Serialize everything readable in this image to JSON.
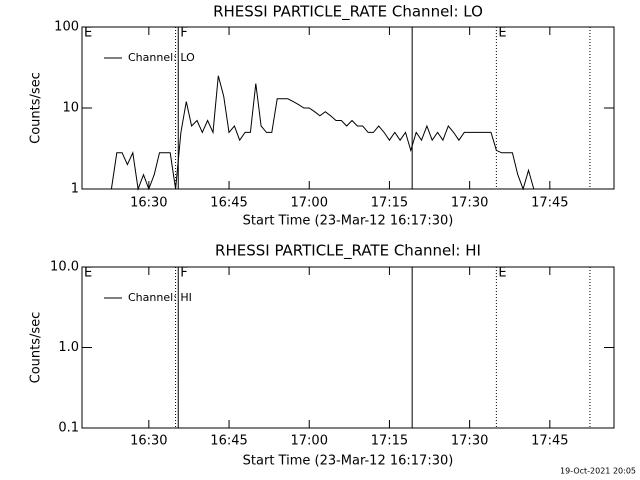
{
  "chart_data": [
    {
      "type": "line",
      "title": "RHESSI PARTICLE_RATE Channel: LO",
      "xlabel": "Start Time (23-Mar-12 16:17:30)",
      "ylabel": "Counts/sec",
      "log_y": true,
      "ylim": [
        1,
        100
      ],
      "yticks": [
        1,
        10,
        100
      ],
      "xlim": [
        "16:17:30",
        "17:57"
      ],
      "xticks": [
        "16:30",
        "16:45",
        "17:00",
        "17:15",
        "17:30",
        "17:45"
      ],
      "x": [
        "16:23",
        "16:24",
        "16:25",
        "16:26",
        "16:27",
        "16:28",
        "16:29",
        "16:30",
        "16:31",
        "16:32",
        "16:33",
        "16:34",
        "16:35",
        "16:36",
        "16:37",
        "16:38",
        "16:39",
        "16:40",
        "16:41",
        "16:42",
        "16:43",
        "16:44",
        "16:45",
        "16:46",
        "16:47",
        "16:48",
        "16:49",
        "16:50",
        "16:51",
        "16:52",
        "16:53",
        "16:54",
        "16:55",
        "16:56",
        "16:57",
        "16:58",
        "16:59",
        "17:00",
        "17:01",
        "17:02",
        "17:03",
        "17:04",
        "17:05",
        "17:06",
        "17:07",
        "17:08",
        "17:09",
        "17:10",
        "17:11",
        "17:12",
        "17:13",
        "17:14",
        "17:15",
        "17:16",
        "17:17",
        "17:18",
        "17:19",
        "17:20",
        "17:21",
        "17:22",
        "17:23",
        "17:24",
        "17:25",
        "17:26",
        "17:27",
        "17:28",
        "17:29",
        "17:30",
        "17:31",
        "17:32",
        "17:33",
        "17:34",
        "17:35",
        "17:36",
        "17:37",
        "17:38",
        "17:39",
        "17:40",
        "17:41",
        "17:42"
      ],
      "series": [
        {
          "name": "Channel: LO",
          "color": "#000000",
          "values": [
            1,
            2.8,
            2.8,
            2,
            2.8,
            1,
            1.5,
            1,
            1.5,
            2.8,
            2.8,
            2.8,
            1,
            5,
            12,
            6,
            7,
            5,
            7,
            5,
            25,
            14,
            5,
            6,
            4,
            5,
            5,
            20,
            6,
            5,
            5,
            13,
            13,
            13,
            12,
            11,
            10,
            10,
            9,
            8,
            9,
            8,
            7,
            7,
            6,
            7,
            6,
            6,
            5,
            5,
            6,
            5,
            4,
            5,
            4,
            5,
            3,
            5,
            4,
            6,
            4,
            5,
            4,
            6,
            5,
            4,
            5,
            5,
            5,
            5,
            5,
            5,
            3,
            2.8,
            2.8,
            2.8,
            1.5,
            1,
            1.7,
            1
          ]
        }
      ],
      "events": [
        {
          "x": "16:17:30",
          "label": "E",
          "style": "none"
        },
        {
          "x": "16:35",
          "style": "dotted"
        },
        {
          "x": "16:35:30",
          "label": "F",
          "style": "solid"
        },
        {
          "x": "17:19:15",
          "style": "solid"
        },
        {
          "x": "17:35",
          "label": "E",
          "style": "dotted"
        },
        {
          "x": "17:52:30",
          "style": "dotted"
        }
      ]
    },
    {
      "type": "line",
      "title": "RHESSI PARTICLE_RATE Channel: HI",
      "xlabel": "Start Time (23-Mar-12 16:17:30)",
      "ylabel": "Counts/sec",
      "log_y": true,
      "ylim": [
        0.1,
        10
      ],
      "yticks": [
        0.1,
        {
          "value": 1,
          "label": "1.0"
        },
        {
          "value": 10,
          "label": "10.0"
        }
      ],
      "xlim": [
        "16:17:30",
        "17:57"
      ],
      "xticks": [
        "16:30",
        "16:45",
        "17:00",
        "17:15",
        "17:30",
        "17:45"
      ],
      "x": [],
      "series": [
        {
          "name": "Channel: HI",
          "color": "#000000",
          "values": []
        }
      ],
      "events": [
        {
          "x": "16:17:30",
          "label": "E",
          "style": "none"
        },
        {
          "x": "16:35",
          "style": "dotted"
        },
        {
          "x": "16:35:30",
          "label": "F",
          "style": "solid"
        },
        {
          "x": "17:19:15",
          "style": "solid"
        },
        {
          "x": "17:35",
          "label": "E",
          "style": "dotted"
        },
        {
          "x": "17:52:30",
          "style": "dotted"
        }
      ]
    }
  ],
  "footer": "19-Oct-2021 20:05"
}
